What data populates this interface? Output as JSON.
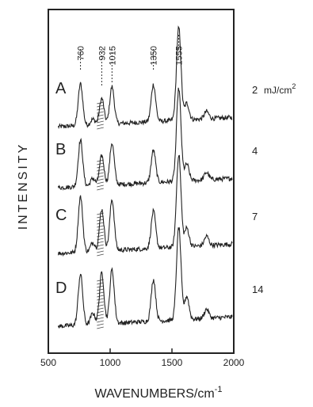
{
  "chart_data": {
    "type": "line",
    "xlabel": "WAVENUMBERS/cm",
    "xlabel_superscript": "-1",
    "ylabel": "INTENSITY",
    "xlim": [
      500,
      2000
    ],
    "x_ticks": [
      500,
      1000,
      1500,
      2000
    ],
    "x_tick_labels": [
      "500",
      "1000",
      "1500",
      "2000"
    ],
    "grid": false,
    "legend": "none",
    "y_scale": "arbitrary, traces vertically offset",
    "peak_markers": [
      {
        "label": "760",
        "x": 760
      },
      {
        "label": "932",
        "x": 932
      },
      {
        "label": "1015",
        "x": 1015
      },
      {
        "label": "1350",
        "x": 1350
      },
      {
        "label": "1555",
        "x": 1555
      }
    ],
    "hatched_band": [
      880,
      960
    ],
    "series": [
      {
        "name": "A",
        "side_label": "2",
        "unit": "mJ/cm",
        "unit_superscript": "2",
        "peaks": [
          {
            "x": 760,
            "height": 0.45
          },
          {
            "x": 860,
            "height": 0.06
          },
          {
            "x": 932,
            "height": 0.28
          },
          {
            "x": 1015,
            "height": 0.4
          },
          {
            "x": 1350,
            "height": 0.4
          },
          {
            "x": 1555,
            "height": 1.0
          },
          {
            "x": 1620,
            "height": 0.18
          },
          {
            "x": 1780,
            "height": 0.08
          }
        ]
      },
      {
        "name": "B",
        "side_label": "4",
        "peaks": [
          {
            "x": 760,
            "height": 0.5
          },
          {
            "x": 860,
            "height": 0.08
          },
          {
            "x": 932,
            "height": 0.32
          },
          {
            "x": 1015,
            "height": 0.45
          },
          {
            "x": 1350,
            "height": 0.35
          },
          {
            "x": 1555,
            "height": 1.0
          },
          {
            "x": 1620,
            "height": 0.18
          },
          {
            "x": 1780,
            "height": 0.08
          }
        ]
      },
      {
        "name": "C",
        "side_label": "7",
        "peaks": [
          {
            "x": 760,
            "height": 0.6
          },
          {
            "x": 860,
            "height": 0.1
          },
          {
            "x": 932,
            "height": 0.45
          },
          {
            "x": 1015,
            "height": 0.55
          },
          {
            "x": 1350,
            "height": 0.4
          },
          {
            "x": 1555,
            "height": 1.0
          },
          {
            "x": 1620,
            "height": 0.2
          },
          {
            "x": 1780,
            "height": 0.1
          }
        ]
      },
      {
        "name": "D",
        "side_label": "14",
        "peaks": [
          {
            "x": 760,
            "height": 0.55
          },
          {
            "x": 860,
            "height": 0.12
          },
          {
            "x": 932,
            "height": 0.55
          },
          {
            "x": 1015,
            "height": 0.58
          },
          {
            "x": 1350,
            "height": 0.45
          },
          {
            "x": 1555,
            "height": 1.0
          },
          {
            "x": 1620,
            "height": 0.25
          },
          {
            "x": 1780,
            "height": 0.1
          }
        ]
      }
    ]
  }
}
